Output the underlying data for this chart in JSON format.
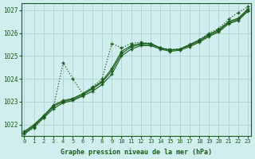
{
  "bg_color": "#d0eeee",
  "grid_color": "#aacccc",
  "line_color": "#1a5c1a",
  "marker": "+",
  "xlabel": "Graphe pression niveau de la mer (hPa)",
  "xlabel_color": "#1a5c1a",
  "ylim": [
    1021.5,
    1027.3
  ],
  "xlim": [
    -0.3,
    23.3
  ],
  "yticks": [
    1022,
    1023,
    1024,
    1025,
    1026,
    1027
  ],
  "xticks": [
    0,
    1,
    2,
    3,
    4,
    5,
    6,
    7,
    8,
    9,
    10,
    11,
    12,
    13,
    14,
    15,
    16,
    17,
    18,
    19,
    20,
    21,
    22,
    23
  ],
  "series": [
    {
      "y": [
        1021.6,
        1021.9,
        1022.3,
        1022.7,
        1022.95,
        1023.05,
        1023.25,
        1023.45,
        1023.75,
        1024.2,
        1025.0,
        1025.3,
        1025.45,
        1025.45,
        1025.3,
        1025.2,
        1025.25,
        1025.4,
        1025.6,
        1025.85,
        1026.05,
        1026.4,
        1026.55,
        1026.95
      ],
      "linestyle": "-",
      "linewidth": 0.8
    },
    {
      "y": [
        1021.65,
        1021.95,
        1022.35,
        1022.8,
        1023.0,
        1023.1,
        1023.3,
        1023.55,
        1023.85,
        1024.35,
        1025.1,
        1025.4,
        1025.5,
        1025.5,
        1025.35,
        1025.25,
        1025.3,
        1025.45,
        1025.65,
        1025.9,
        1026.1,
        1026.45,
        1026.6,
        1027.0
      ],
      "linestyle": "-",
      "linewidth": 0.8
    },
    {
      "y": [
        1021.7,
        1022.0,
        1022.4,
        1022.85,
        1023.05,
        1023.15,
        1023.35,
        1023.6,
        1023.9,
        1024.45,
        1025.2,
        1025.45,
        1025.55,
        1025.55,
        1025.35,
        1025.25,
        1025.3,
        1025.5,
        1025.7,
        1025.95,
        1026.15,
        1026.5,
        1026.65,
        1027.05
      ],
      "linestyle": "-",
      "linewidth": 0.8
    },
    {
      "y": [
        1021.6,
        1021.85,
        1022.3,
        1022.75,
        1024.7,
        1024.0,
        1023.35,
        1023.65,
        1024.0,
        1025.55,
        1025.35,
        1025.55,
        1025.6,
        1025.55,
        1025.35,
        1025.3,
        1025.3,
        1025.5,
        1025.7,
        1026.0,
        1026.2,
        1026.6,
        1026.9,
        1027.15
      ],
      "linestyle": "dotted",
      "linewidth": 0.9
    }
  ]
}
